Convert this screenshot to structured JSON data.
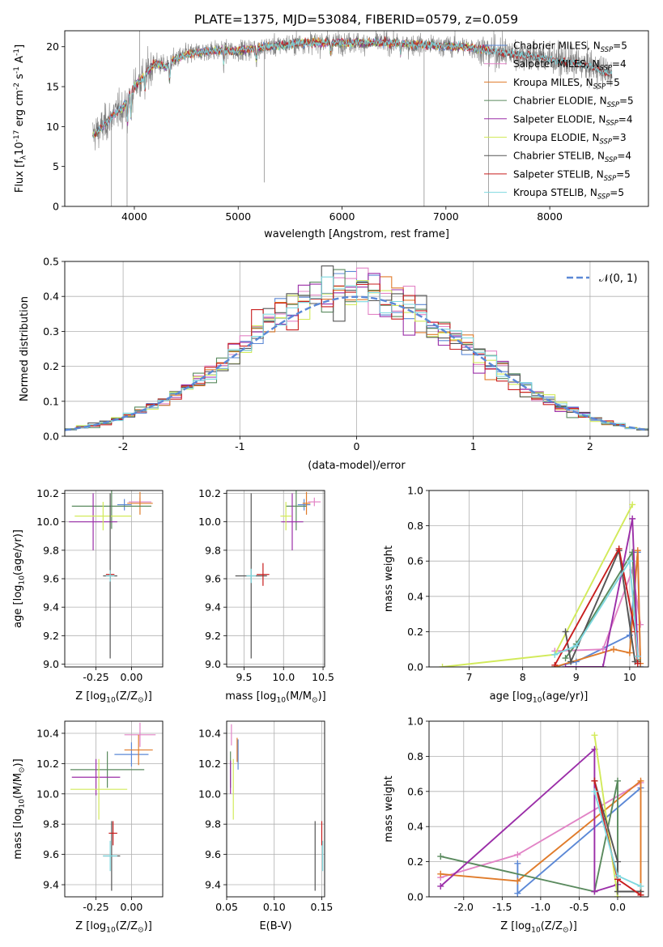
{
  "figure": {
    "title": "PLATE=1375, MJD=53084, FIBERID=0579, z=0.059"
  },
  "colors": {
    "Chabrier MILES": "#5b88d6",
    "Salpeter MILES": "#e284c6",
    "Kroupa MILES": "#e07b2a",
    "Chabrier ELODIE": "#5a8a5e",
    "Salpeter ELODIE": "#9b2ea8",
    "Kroupa ELODIE": "#d2ea5a",
    "Chabrier STELIB": "#555555",
    "Salpeter STELIB": "#c81e1e",
    "Kroupa STELIB": "#7ed8df",
    "gaussian": "#5b88d6",
    "grid": "#b0b0b0"
  },
  "chart_data": [
    {
      "id": "spectrum",
      "type": "line",
      "xlabel": "wavelength [Angstrom, rest frame]",
      "ylabel": "Flux [f$_\\lambda$10$^{-17}$ erg cm$^{-2}$ s$^{-1}$ A$^{-1}$]",
      "xlim": [
        3330,
        8950
      ],
      "ylim": [
        0,
        22
      ],
      "xticks": [
        4000,
        5000,
        6000,
        7000,
        8000
      ],
      "yticks": [
        0,
        5,
        10,
        15,
        20
      ],
      "grid": false,
      "legend_position": "right",
      "legend": [
        {
          "label": "Chabrier MILES, N$_{SSP}$=5",
          "color_key": "Chabrier MILES"
        },
        {
          "label": "Salpeter MILES, N$_{SSP}$=4",
          "color_key": "Salpeter MILES"
        },
        {
          "label": "Kroupa MILES, N$_{SSP}$=5",
          "color_key": "Kroupa MILES"
        },
        {
          "label": "Chabrier ELODIE, N$_{SSP}$=5",
          "color_key": "Chabrier ELODIE"
        },
        {
          "label": "Salpeter ELODIE, N$_{SSP}$=4",
          "color_key": "Salpeter ELODIE"
        },
        {
          "label": "Kroupa ELODIE, N$_{SSP}$=3",
          "color_key": "Kroupa ELODIE"
        },
        {
          "label": "Chabrier STELIB, N$_{SSP}$=4",
          "color_key": "Chabrier STELIB"
        },
        {
          "label": "Salpeter STELIB, N$_{SSP}$=5",
          "color_key": "Salpeter STELIB"
        },
        {
          "label": "Kroupa STELIB, N$_{SSP}$=5",
          "color_key": "Kroupa STELIB"
        }
      ],
      "continuum_anchors": {
        "wavelength": [
          3600,
          3700,
          3800,
          3900,
          4000,
          4100,
          4200,
          4300,
          4400,
          4500,
          4700,
          5000,
          5300,
          5600,
          6000,
          6400,
          6800,
          7200,
          7400,
          7600,
          8000,
          8400,
          8600
        ],
        "flux": [
          9,
          10,
          11.5,
          12.5,
          15,
          16.5,
          18,
          17.5,
          18.5,
          19,
          19.5,
          19.5,
          20,
          20.5,
          20.5,
          20.5,
          20.2,
          20,
          19.5,
          19.2,
          18.5,
          17.5,
          16.5
        ]
      }
    },
    {
      "id": "residuals",
      "type": "histogram",
      "xlabel": "(data-model)/error",
      "ylabel": "Normed distribution",
      "xlim": [
        -2.5,
        2.5
      ],
      "ylim": [
        0,
        0.5
      ],
      "xticks": [
        -2,
        -1,
        0,
        1,
        2
      ],
      "yticks": [
        0.0,
        0.1,
        0.2,
        0.3,
        0.4,
        0.5
      ],
      "grid": true,
      "legend": [
        {
          "label": "$\\mathcal{N}(0, 1)$",
          "style": "dashed",
          "color_key": "gaussian"
        }
      ],
      "legend_position": "top-right",
      "bin_width": 0.1
    },
    {
      "id": "age_vs_Z",
      "type": "errorbar",
      "xlabel": "Z [log$_{10}$(Z/Z$_\\odot$)]",
      "ylabel": "age  [log$_{10}$(age/yr)]",
      "xlim": [
        -0.47,
        0.22
      ],
      "ylim": [
        8.98,
        10.22
      ],
      "xticks": [
        -0.25,
        0.0
      ],
      "yticks": [
        9.0,
        9.2,
        9.4,
        9.6,
        9.8,
        10.0,
        10.2
      ],
      "grid": true,
      "points": [
        {
          "model": "Chabrier MILES",
          "x": -0.05,
          "y": 10.12,
          "xerr": 0.05,
          "yerr": 0.04
        },
        {
          "model": "Salpeter MILES",
          "x": 0.06,
          "y": 10.14,
          "xerr": 0.08,
          "yerr": 0.03
        },
        {
          "model": "Kroupa MILES",
          "x": 0.06,
          "y": 10.13,
          "xerr": 0.09,
          "yerr": 0.08
        },
        {
          "model": "Chabrier ELODIE",
          "x": -0.14,
          "y": 10.11,
          "xerr": 0.28,
          "yerr": 0.16
        },
        {
          "model": "Salpeter ELODIE",
          "x": -0.27,
          "y": 10.0,
          "xerr": 0.17,
          "yerr": 0.2
        },
        {
          "model": "Kroupa ELODIE",
          "x": -0.2,
          "y": 10.04,
          "xerr": 0.2,
          "yerr": 0.1
        },
        {
          "model": "Chabrier STELIB",
          "x": -0.15,
          "y": 9.62,
          "xerr": 0.05,
          "yerr": 0.58
        },
        {
          "model": "Salpeter STELIB",
          "x": -0.15,
          "y": 9.63,
          "xerr": 0.03,
          "yerr": 0.03
        },
        {
          "model": "Kroupa STELIB",
          "x": -0.15,
          "y": 9.62,
          "xerr": 0.03,
          "yerr": 0.04
        }
      ]
    },
    {
      "id": "age_vs_mass",
      "type": "errorbar",
      "xlabel": "mass [log$_{10}$(M/M$_\\odot$)]",
      "ylabel": "",
      "xlim": [
        9.28,
        10.52
      ],
      "ylim": [
        8.98,
        10.22
      ],
      "xticks": [
        9.5,
        10.0,
        10.5
      ],
      "yticks": [
        9.0,
        9.2,
        9.4,
        9.6,
        9.8,
        10.0,
        10.2
      ],
      "grid": true,
      "points": [
        {
          "model": "Chabrier MILES",
          "x": 10.26,
          "y": 10.12,
          "xerr": 0.08,
          "yerr": 0.04
        },
        {
          "model": "Salpeter MILES",
          "x": 10.39,
          "y": 10.14,
          "xerr": 0.08,
          "yerr": 0.03
        },
        {
          "model": "Kroupa MILES",
          "x": 10.29,
          "y": 10.13,
          "xerr": 0.05,
          "yerr": 0.08
        },
        {
          "model": "Chabrier ELODIE",
          "x": 10.16,
          "y": 10.11,
          "xerr": 0.13,
          "yerr": 0.17
        },
        {
          "model": "Salpeter ELODIE",
          "x": 10.11,
          "y": 10.0,
          "xerr": 0.14,
          "yerr": 0.2
        },
        {
          "model": "Kroupa ELODIE",
          "x": 10.03,
          "y": 10.04,
          "xerr": 0.07,
          "yerr": 0.1
        },
        {
          "model": "Chabrier STELIB",
          "x": 9.59,
          "y": 9.62,
          "xerr": 0.2,
          "yerr": 0.58
        },
        {
          "model": "Salpeter STELIB",
          "x": 9.74,
          "y": 9.63,
          "xerr": 0.08,
          "yerr": 0.08
        },
        {
          "model": "Kroupa STELIB",
          "x": 9.59,
          "y": 9.62,
          "xerr": 0.06,
          "yerr": 0.05
        }
      ]
    },
    {
      "id": "weight_vs_age",
      "type": "line",
      "xlabel": "age  [log$_{10}$(age/yr)]",
      "ylabel": "mass weight",
      "xlim": [
        6.25,
        10.35
      ],
      "ylim": [
        0.0,
        1.0
      ],
      "xticks": [
        7,
        8,
        9,
        10
      ],
      "yticks": [
        0.0,
        0.2,
        0.4,
        0.6,
        0.8,
        1.0
      ],
      "grid": true,
      "series": [
        {
          "model": "Chabrier MILES",
          "points": [
            [
              8.6,
              0.0
            ],
            [
              9.0,
              0.03
            ],
            [
              10.0,
              0.18
            ],
            [
              10.15,
              0.65
            ],
            [
              10.2,
              0.0
            ]
          ]
        },
        {
          "model": "Salpeter MILES",
          "points": [
            [
              8.6,
              0.09
            ],
            [
              9.5,
              0.1
            ],
            [
              10.05,
              0.55
            ],
            [
              10.2,
              0.24
            ]
          ]
        },
        {
          "model": "Kroupa MILES",
          "points": [
            [
              8.6,
              0.0
            ],
            [
              9.7,
              0.1
            ],
            [
              10.0,
              0.08
            ],
            [
              10.15,
              0.66
            ],
            [
              10.2,
              0.02
            ]
          ]
        },
        {
          "model": "Chabrier ELODIE",
          "points": [
            [
              8.8,
              0.05
            ],
            [
              9.0,
              0.13
            ],
            [
              10.05,
              0.65
            ],
            [
              10.15,
              0.04
            ]
          ]
        },
        {
          "model": "Salpeter ELODIE",
          "points": [
            [
              8.8,
              0.0
            ],
            [
              9.5,
              0.0
            ],
            [
              10.05,
              0.84
            ],
            [
              10.15,
              0.06
            ]
          ]
        },
        {
          "model": "Kroupa ELODIE",
          "points": [
            [
              6.5,
              0.0
            ],
            [
              8.6,
              0.07
            ],
            [
              10.05,
              0.92
            ]
          ]
        },
        {
          "model": "Chabrier STELIB",
          "points": [
            [
              8.8,
              0.2
            ],
            [
              8.9,
              0.03
            ],
            [
              9.8,
              0.66
            ],
            [
              10.1,
              0.03
            ],
            [
              10.15,
              0.03
            ]
          ]
        },
        {
          "model": "Salpeter STELIB",
          "points": [
            [
              8.6,
              0.01
            ],
            [
              9.8,
              0.67
            ],
            [
              10.1,
              0.2
            ],
            [
              10.15,
              0.02
            ]
          ]
        },
        {
          "model": "Kroupa STELIB",
          "points": [
            [
              8.6,
              0.07
            ],
            [
              9.0,
              0.12
            ],
            [
              10.0,
              0.6
            ],
            [
              10.15,
              0.06
            ]
          ]
        }
      ]
    },
    {
      "id": "mass_vs_Z",
      "type": "errorbar",
      "xlabel": "Z [log$_{10}$(Z/Z$_\\odot$)]",
      "ylabel": "mass [log$_{10}$(M/M$_\\odot$)]",
      "xlim": [
        -0.47,
        0.22
      ],
      "ylim": [
        9.32,
        10.48
      ],
      "xticks": [
        -0.25,
        0.0
      ],
      "yticks": [
        9.4,
        9.6,
        9.8,
        10.0,
        10.2,
        10.4
      ],
      "grid": true,
      "points": [
        {
          "model": "Chabrier MILES",
          "x": 0.0,
          "y": 10.26,
          "xerr": 0.12,
          "yerr": 0.08
        },
        {
          "model": "Salpeter MILES",
          "x": 0.06,
          "y": 10.39,
          "xerr": 0.11,
          "yerr": 0.08
        },
        {
          "model": "Kroupa MILES",
          "x": 0.05,
          "y": 10.29,
          "xerr": 0.1,
          "yerr": 0.1
        },
        {
          "model": "Chabrier ELODIE",
          "x": -0.17,
          "y": 10.16,
          "xerr": 0.26,
          "yerr": 0.12
        },
        {
          "model": "Salpeter ELODIE",
          "x": -0.25,
          "y": 10.11,
          "xerr": 0.17,
          "yerr": 0.12
        },
        {
          "model": "Kroupa ELODIE",
          "x": -0.23,
          "y": 10.03,
          "xerr": 0.2,
          "yerr": 0.2
        },
        {
          "model": "Chabrier STELIB",
          "x": -0.14,
          "y": 9.59,
          "xerr": 0.06,
          "yerr": 0.23
        },
        {
          "model": "Salpeter STELIB",
          "x": -0.13,
          "y": 9.74,
          "xerr": 0.03,
          "yerr": 0.08
        },
        {
          "model": "Kroupa STELIB",
          "x": -0.15,
          "y": 9.59,
          "xerr": 0.05,
          "yerr": 0.1
        }
      ]
    },
    {
      "id": "mass_vs_EBV",
      "type": "errorbar",
      "xlabel": "E(B-V)",
      "ylabel": "",
      "xlim": [
        0.05,
        0.153
      ],
      "ylim": [
        9.32,
        10.48
      ],
      "xticks": [
        0.05,
        0.1,
        0.15
      ],
      "yticks": [
        9.4,
        9.6,
        9.8,
        10.0,
        10.2,
        10.4
      ],
      "grid": true,
      "points": [
        {
          "model": "Chabrier MILES",
          "x": 0.062,
          "y": 10.26,
          "xerr": 0.0,
          "yerr": 0.1
        },
        {
          "model": "Salpeter MILES",
          "x": 0.055,
          "y": 10.39,
          "xerr": 0.0,
          "yerr": 0.07
        },
        {
          "model": "Kroupa MILES",
          "x": 0.061,
          "y": 10.29,
          "xerr": 0.0,
          "yerr": 0.08
        },
        {
          "model": "Chabrier ELODIE",
          "x": 0.054,
          "y": 10.16,
          "xerr": 0.0,
          "yerr": 0.12
        },
        {
          "model": "Salpeter ELODIE",
          "x": 0.054,
          "y": 10.11,
          "xerr": 0.0,
          "yerr": 0.11
        },
        {
          "model": "Kroupa ELODIE",
          "x": 0.057,
          "y": 10.03,
          "xerr": 0.0,
          "yerr": 0.2
        },
        {
          "model": "Chabrier STELIB",
          "x": 0.143,
          "y": 9.59,
          "xerr": 0.0,
          "yerr": 0.23
        },
        {
          "model": "Salpeter STELIB",
          "x": 0.15,
          "y": 9.74,
          "xerr": 0.0,
          "yerr": 0.08
        },
        {
          "model": "Kroupa STELIB",
          "x": 0.151,
          "y": 9.59,
          "xerr": 0.0,
          "yerr": 0.1
        }
      ]
    },
    {
      "id": "weight_vs_Z",
      "type": "line",
      "xlabel": "Z [log$_{10}$(Z/Z$_\\odot$)]",
      "ylabel": "mass weight",
      "xlim": [
        -2.45,
        0.4
      ],
      "ylim": [
        0.0,
        1.0
      ],
      "xticks": [
        -2.0,
        -1.5,
        -1.0,
        -0.5,
        0.0
      ],
      "yticks": [
        0.0,
        0.2,
        0.4,
        0.6,
        0.8,
        1.0
      ],
      "grid": true,
      "series": [
        {
          "model": "Chabrier MILES",
          "points": [
            [
              -1.3,
              0.19
            ],
            [
              -1.3,
              0.02
            ],
            [
              0.3,
              0.62
            ]
          ]
        },
        {
          "model": "Salpeter MILES",
          "points": [
            [
              -2.3,
              0.11
            ],
            [
              -1.3,
              0.24
            ],
            [
              0.3,
              0.65
            ]
          ]
        },
        {
          "model": "Kroupa MILES",
          "points": [
            [
              -2.3,
              0.13
            ],
            [
              -1.3,
              0.09
            ],
            [
              0.3,
              0.66
            ],
            [
              0.3,
              0.01
            ]
          ]
        },
        {
          "model": "Chabrier ELODIE",
          "points": [
            [
              -2.3,
              0.23
            ],
            [
              -0.3,
              0.03
            ],
            [
              0.0,
              0.66
            ],
            [
              0.0,
              0.1
            ]
          ]
        },
        {
          "model": "Salpeter ELODIE",
          "points": [
            [
              -2.3,
              0.06
            ],
            [
              -0.3,
              0.84
            ],
            [
              -0.3,
              0.03
            ],
            [
              0.0,
              0.07
            ]
          ]
        },
        {
          "model": "Kroupa ELODIE",
          "points": [
            [
              -0.3,
              0.92
            ],
            [
              0.0,
              0.0
            ]
          ]
        },
        {
          "model": "Chabrier STELIB",
          "points": [
            [
              -0.3,
              0.66
            ],
            [
              0.0,
              0.2
            ],
            [
              0.0,
              0.03
            ],
            [
              0.3,
              0.03
            ]
          ]
        },
        {
          "model": "Salpeter STELIB",
          "points": [
            [
              -0.3,
              0.66
            ],
            [
              0.0,
              0.1
            ],
            [
              0.3,
              0.01
            ]
          ]
        },
        {
          "model": "Kroupa STELIB",
          "points": [
            [
              -0.3,
              0.6
            ],
            [
              0.0,
              0.12
            ],
            [
              0.3,
              0.06
            ]
          ]
        }
      ]
    }
  ]
}
